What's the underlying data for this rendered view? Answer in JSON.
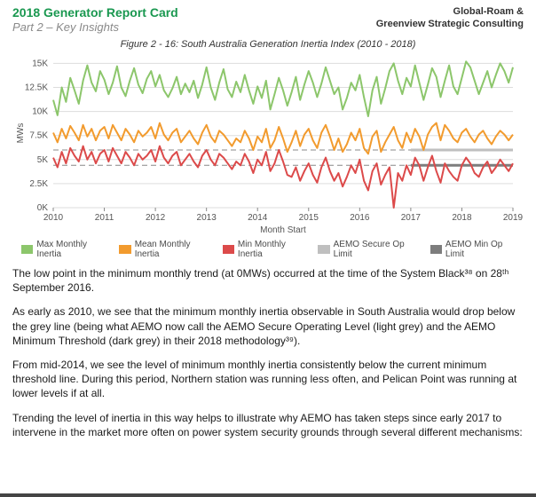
{
  "header": {
    "title": "2018 Generator Report Card",
    "subtitle": "Part 2 – Key Insights",
    "org_line1": "Global-Roam &",
    "org_line2": "Greenview Strategic Consulting"
  },
  "figure": {
    "title": "Figure 2 - 16: South Australia Generation Inertia Index (2010 - 2018)",
    "chart": {
      "type": "line",
      "ylabel": "MWs",
      "xlabel": "Month Start",
      "label_fontsize": 10,
      "ylim": [
        0,
        15500
      ],
      "ytick_labels": [
        "0K",
        "2.5K",
        "5K",
        "7.5K",
        "10K",
        "12.5K",
        "15K"
      ],
      "ytick_values": [
        0,
        2500,
        5000,
        7500,
        10000,
        12500,
        15000
      ],
      "xtick_labels": [
        "2010",
        "2011",
        "2012",
        "2013",
        "2014",
        "2015",
        "2016",
        "2017",
        "2018",
        "2019"
      ],
      "xtick_indices": [
        0,
        12,
        24,
        36,
        48,
        60,
        72,
        84,
        96,
        108
      ],
      "n_points": 109,
      "background_color": "#ffffff",
      "grid_color": "#dddddd",
      "dash_color": "#888888",
      "series": {
        "max": {
          "label": "Max Monthly Inertia",
          "color": "#8cc66b",
          "width": 2,
          "values": [
            11200,
            9600,
            12500,
            11000,
            13500,
            12200,
            10800,
            13200,
            14800,
            13000,
            12100,
            14200,
            13300,
            11800,
            13000,
            14700,
            12500,
            11600,
            13200,
            14500,
            12800,
            11900,
            13400,
            14200,
            12600,
            13800,
            12200,
            11500,
            12400,
            13600,
            11800,
            12900,
            12000,
            13200,
            11400,
            12800,
            14600,
            12500,
            11200,
            13000,
            14400,
            12300,
            11500,
            13100,
            12000,
            13800,
            12200,
            10800,
            12600,
            11400,
            13200,
            10200,
            11800,
            13500,
            12200,
            10600,
            12000,
            13600,
            11200,
            12800,
            14200,
            13000,
            11500,
            12900,
            14600,
            13200,
            11800,
            12500,
            10200,
            11400,
            13000,
            12200,
            13800,
            11500,
            9500,
            12200,
            13600,
            10800,
            12400,
            14200,
            15000,
            13200,
            11800,
            13500,
            12600,
            14800,
            13000,
            11200,
            12800,
            14500,
            13600,
            11500,
            13200,
            14800,
            12600,
            11800,
            13500,
            15200,
            14600,
            13200,
            11800,
            13000,
            14200,
            12500,
            13800,
            15000,
            14200,
            13000,
            14600
          ]
        },
        "mean": {
          "label": "Mean Monthly Inertia",
          "color": "#f29b2e",
          "width": 2,
          "values": [
            7800,
            6800,
            8200,
            7200,
            8500,
            7800,
            7000,
            8600,
            7400,
            8200,
            7000,
            8000,
            8400,
            7200,
            8600,
            7800,
            7000,
            8200,
            7600,
            6800,
            8000,
            7400,
            7800,
            8400,
            7200,
            8800,
            7600,
            7000,
            7800,
            8200,
            6800,
            7400,
            8000,
            7200,
            6600,
            7800,
            8600,
            7400,
            6800,
            8000,
            7600,
            7000,
            6400,
            7200,
            6800,
            8000,
            7200,
            6000,
            7400,
            6800,
            8200,
            6200,
            7000,
            8400,
            7200,
            5800,
            6800,
            8000,
            6400,
            7600,
            8200,
            7000,
            6200,
            7800,
            8600,
            7400,
            6000,
            7200,
            5800,
            6600,
            7800,
            7000,
            8200,
            6200,
            5600,
            7400,
            8000,
            5800,
            6800,
            7600,
            8400,
            7000,
            6200,
            7800,
            6800,
            8200,
            7400,
            6000,
            7600,
            8400,
            8800,
            7000,
            8600,
            8000,
            7200,
            6800,
            7800,
            8200,
            7400,
            6800,
            7600,
            8000,
            7200,
            6600,
            7400,
            8000,
            7600,
            7000,
            7600
          ]
        },
        "min": {
          "label": "Min Monthly Inertia",
          "color": "#dc4a4a",
          "width": 2,
          "values": [
            5200,
            4200,
            5800,
            4600,
            6200,
            5400,
            4800,
            6400,
            5000,
            5800,
            4600,
            5600,
            6000,
            4800,
            6200,
            5400,
            4600,
            5800,
            5200,
            4400,
            5600,
            5000,
            5400,
            6000,
            4800,
            6400,
            5200,
            4600,
            5400,
            5800,
            4400,
            5000,
            5600,
            4800,
            4200,
            5400,
            6000,
            5000,
            4400,
            5600,
            5200,
            4600,
            4000,
            4800,
            4400,
            5600,
            4800,
            3600,
            5000,
            4400,
            5800,
            3800,
            4600,
            6000,
            4800,
            3400,
            3200,
            4200,
            2800,
            3800,
            4600,
            3400,
            2600,
            4200,
            5200,
            3800,
            2800,
            3600,
            2200,
            3200,
            4400,
            3600,
            5000,
            2800,
            1800,
            3800,
            4600,
            2400,
            3400,
            4200,
            0,
            3600,
            2800,
            4400,
            3400,
            5200,
            4400,
            2800,
            4200,
            5400,
            3800,
            2600,
            4600,
            3800,
            3200,
            2800,
            4400,
            5200,
            4600,
            3600,
            3200,
            4200,
            4800,
            3600,
            4200,
            5000,
            4400,
            3800,
            4600
          ]
        }
      },
      "ref_lines": {
        "secure": {
          "label": "AEMO Secure Op Limit",
          "color": "#bfbfbf",
          "value": 6000,
          "x_start": 84,
          "width": 3
        },
        "minop": {
          "label": "AEMO Min Op Limit",
          "color": "#7d7d7d",
          "value": 4400,
          "x_start": 84,
          "width": 3
        }
      }
    }
  },
  "paragraphs": [
    "The low point in the minimum monthly trend (at 0MWs) occurred at the time of the System Black³⁸ on 28ᵗʰ September 2016.",
    "As early as 2010, we see that the minimum monthly inertia observable in South Australia would drop below the grey line (being what AEMO now call the AEMO Secure Operating Level (light grey) and the AEMO Minimum Threshold (dark grey) in their 2018 methodology³⁹).",
    "From mid-2014, we see the level of minimum monthly inertia consistently below the current minimum threshold line.  During this period, Northern station was running less often, and Pelican Point was running at lower levels if at all.",
    "Trending the level of inertia in this way helps to illustrate why AEMO has taken steps since early 2017 to intervene in the market more often on power system security grounds through several different mechanisms:"
  ]
}
